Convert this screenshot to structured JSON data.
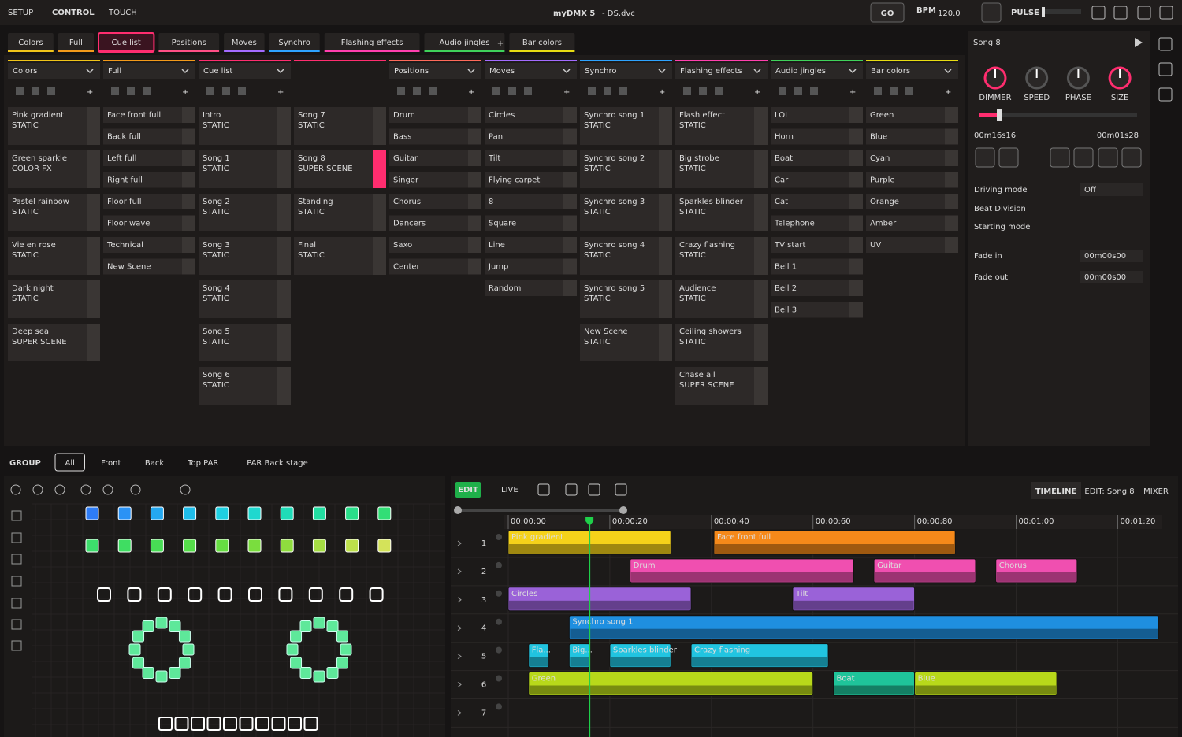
{
  "topbar": {
    "modes": [
      "SETUP",
      "CONTROL",
      "TOUCH"
    ],
    "app": "myDMX 5",
    "file": "- DS.dvc",
    "go": "GO",
    "bpm_label": "BPM",
    "bpm": "120.0",
    "pulse": "PULSE"
  },
  "tabs": [
    {
      "label": "Colors",
      "color": "#f0c419"
    },
    {
      "label": "Full",
      "color": "#f39a1a"
    },
    {
      "label": "Cue list",
      "color": "#ff2d6f",
      "active": true
    },
    {
      "label": "Positions",
      "color": "#ff4f86"
    },
    {
      "label": "Moves",
      "color": "#a36bff"
    },
    {
      "label": "Synchro",
      "color": "#2ea3ff"
    },
    {
      "label": "Flashing effects",
      "color": "#ff3fae"
    },
    {
      "label": "Audio jingles",
      "color": "#3fd25a"
    },
    {
      "label": "Bar colors",
      "color": "#e8dc12"
    }
  ],
  "columns": [
    {
      "title": "Colors",
      "color": "#f0c419",
      "items": [
        {
          "name": "Pink gradient",
          "sub": "STATIC"
        },
        {
          "name": "Green sparkle",
          "sub": "COLOR FX"
        },
        {
          "name": "Pastel rainbow",
          "sub": "STATIC"
        },
        {
          "name": "Vie en rose",
          "sub": "STATIC"
        },
        {
          "name": "Dark night",
          "sub": "STATIC"
        },
        {
          "name": "Deep sea",
          "sub": "SUPER SCENE"
        }
      ]
    },
    {
      "title": "Full",
      "color": "#f39a1a",
      "items": [
        {
          "name": "Face front full"
        },
        {
          "name": "Back full"
        },
        {
          "name": "Left full"
        },
        {
          "name": "Right full"
        },
        {
          "name": "Floor full"
        },
        {
          "name": "Floor wave"
        },
        {
          "name": "Technical"
        },
        {
          "name": "New Scene"
        }
      ]
    },
    {
      "title": "Cue list",
      "color": "#ff2d6f",
      "items": [
        {
          "name": "Intro",
          "sub": "STATIC"
        },
        {
          "name": "Song 1",
          "sub": "STATIC"
        },
        {
          "name": "Song 2",
          "sub": "STATIC"
        },
        {
          "name": "Song 3",
          "sub": "STATIC"
        },
        {
          "name": "Song 4",
          "sub": "STATIC"
        },
        {
          "name": "Song 5",
          "sub": "STATIC"
        },
        {
          "name": "Song 6",
          "sub": "STATIC"
        },
        {
          "name": "Song 7",
          "sub": "STATIC"
        },
        {
          "name": "Song 8",
          "sub": "SUPER SCENE",
          "active": true
        },
        {
          "name": "Standing",
          "sub": "STATIC"
        },
        {
          "name": "Final",
          "sub": "STATIC"
        }
      ]
    },
    {
      "title": "Positions",
      "color": "#ff6a5a",
      "items": [
        {
          "name": "Drum"
        },
        {
          "name": "Bass"
        },
        {
          "name": "Guitar"
        },
        {
          "name": "Singer"
        },
        {
          "name": "Chorus"
        },
        {
          "name": "Dancers"
        },
        {
          "name": "Saxo"
        },
        {
          "name": "Center"
        }
      ]
    },
    {
      "title": "Moves",
      "color": "#a36bff",
      "items": [
        {
          "name": "Circles"
        },
        {
          "name": "Pan"
        },
        {
          "name": "Tilt"
        },
        {
          "name": "Flying carpet"
        },
        {
          "name": "8"
        },
        {
          "name": "Square"
        },
        {
          "name": "Line"
        },
        {
          "name": "Jump"
        },
        {
          "name": "Random"
        }
      ]
    },
    {
      "title": "Synchro",
      "color": "#2ea3ff",
      "items": [
        {
          "name": "Synchro song 1",
          "sub": "STATIC"
        },
        {
          "name": "Synchro song 2",
          "sub": "STATIC"
        },
        {
          "name": "Synchro song 3",
          "sub": "STATIC"
        },
        {
          "name": "Synchro song 4",
          "sub": "STATIC"
        },
        {
          "name": "Synchro song 5",
          "sub": "STATIC"
        },
        {
          "name": "New Scene",
          "sub": "STATIC"
        }
      ]
    },
    {
      "title": "Flashing effects",
      "color": "#ff3fae",
      "items": [
        {
          "name": "Flash effect",
          "sub": "STATIC"
        },
        {
          "name": "Big strobe",
          "sub": "STATIC"
        },
        {
          "name": "Sparkles blinder",
          "sub": "STATIC"
        },
        {
          "name": "Crazy flashing",
          "sub": "STATIC"
        },
        {
          "name": "Audience",
          "sub": "STATIC"
        },
        {
          "name": "Ceiling showers",
          "sub": "STATIC"
        },
        {
          "name": "Chase all",
          "sub": "SUPER SCENE"
        }
      ]
    },
    {
      "title": "Audio jingles",
      "color": "#3fd25a",
      "items": [
        {
          "name": "LOL"
        },
        {
          "name": "Horn"
        },
        {
          "name": "Boat"
        },
        {
          "name": "Car"
        },
        {
          "name": "Cat"
        },
        {
          "name": "Telephone"
        },
        {
          "name": "TV start"
        },
        {
          "name": "Bell 1"
        },
        {
          "name": "Bell 2"
        },
        {
          "name": "Bell 3"
        }
      ]
    },
    {
      "title": "Bar colors",
      "color": "#e8dc12",
      "items": [
        {
          "name": "Green"
        },
        {
          "name": "Blue"
        },
        {
          "name": "Cyan"
        },
        {
          "name": "Purple"
        },
        {
          "name": "Orange"
        },
        {
          "name": "Amber"
        },
        {
          "name": "UV"
        }
      ]
    }
  ],
  "inspector": {
    "title": "Song 8",
    "knobs": [
      "DIMMER",
      "SPEED",
      "PHASE",
      "SIZE"
    ],
    "position": "00m16s16",
    "duration": "00m01s28",
    "fields": [
      {
        "label": "Driving mode",
        "value": "Off"
      },
      {
        "label": "Beat Division"
      },
      {
        "label": "Starting mode"
      },
      {
        "label": "Fade in",
        "value": "00m00s00"
      },
      {
        "label": "Fade out",
        "value": "00m00s00"
      }
    ]
  },
  "groups": {
    "label": "GROUP",
    "items": [
      "All",
      "Front",
      "Back",
      "Top PAR",
      "PAR Back stage"
    ]
  },
  "timeline": {
    "edit": "EDIT",
    "live": "LIVE",
    "views": [
      "TIMELINE",
      "EDIT: Song 8",
      "MIXER"
    ],
    "rows": [
      1,
      2,
      3,
      4,
      5,
      6,
      7
    ],
    "xlim": [
      0,
      128
    ],
    "xticks": [
      {
        "value": 0,
        "label": "00:00:00"
      },
      {
        "value": 20,
        "label": "00:00:20"
      },
      {
        "value": 40,
        "label": "00:00:40"
      },
      {
        "value": 60,
        "label": "00:00:60"
      },
      {
        "value": 80,
        "label": "00:00:80"
      },
      {
        "value": 100,
        "label": "00:01:00"
      },
      {
        "value": 120,
        "label": "00:01:20"
      }
    ],
    "playhead": 16,
    "clips": [
      {
        "row": 1,
        "label": "Pink gradient",
        "start": 0,
        "end": 32,
        "color": "#f5d21a"
      },
      {
        "row": 1,
        "label": "Face front full",
        "start": 40.5,
        "end": 88,
        "color": "#f5891a"
      },
      {
        "row": 2,
        "label": "Drum",
        "start": 24,
        "end": 68,
        "color": "#f04fb0"
      },
      {
        "row": 2,
        "label": "Guitar",
        "start": 72,
        "end": 92,
        "color": "#f04fb0"
      },
      {
        "row": 2,
        "label": "Chorus",
        "start": 96,
        "end": 112,
        "color": "#f04fb0"
      },
      {
        "row": 3,
        "label": "Circles",
        "start": 0,
        "end": 36,
        "color": "#9a62d8"
      },
      {
        "row": 3,
        "label": "Tilt",
        "start": 56,
        "end": 80,
        "color": "#9a62d8"
      },
      {
        "row": 4,
        "label": "Synchro song 1",
        "start": 12,
        "end": 128,
        "color": "#1f8fe0"
      },
      {
        "row": 5,
        "label": "Fla...",
        "start": 4,
        "end": 8,
        "color": "#21c4e0"
      },
      {
        "row": 5,
        "label": "Big...",
        "start": 12,
        "end": 16,
        "color": "#21c4e0"
      },
      {
        "row": 5,
        "label": "Sparkles blinder",
        "start": 20,
        "end": 32,
        "color": "#21c4e0"
      },
      {
        "row": 5,
        "label": "Crazy flashing",
        "start": 36,
        "end": 63,
        "color": "#21c4e0"
      },
      {
        "row": 6,
        "label": "Green",
        "start": 4,
        "end": 60,
        "color": "#b8d81a"
      },
      {
        "row": 6,
        "label": "Boat",
        "start": 64,
        "end": 80,
        "color": "#1fc49a"
      },
      {
        "row": 6,
        "label": "Blue",
        "start": 80,
        "end": 108,
        "color": "#b8d81a"
      }
    ]
  }
}
